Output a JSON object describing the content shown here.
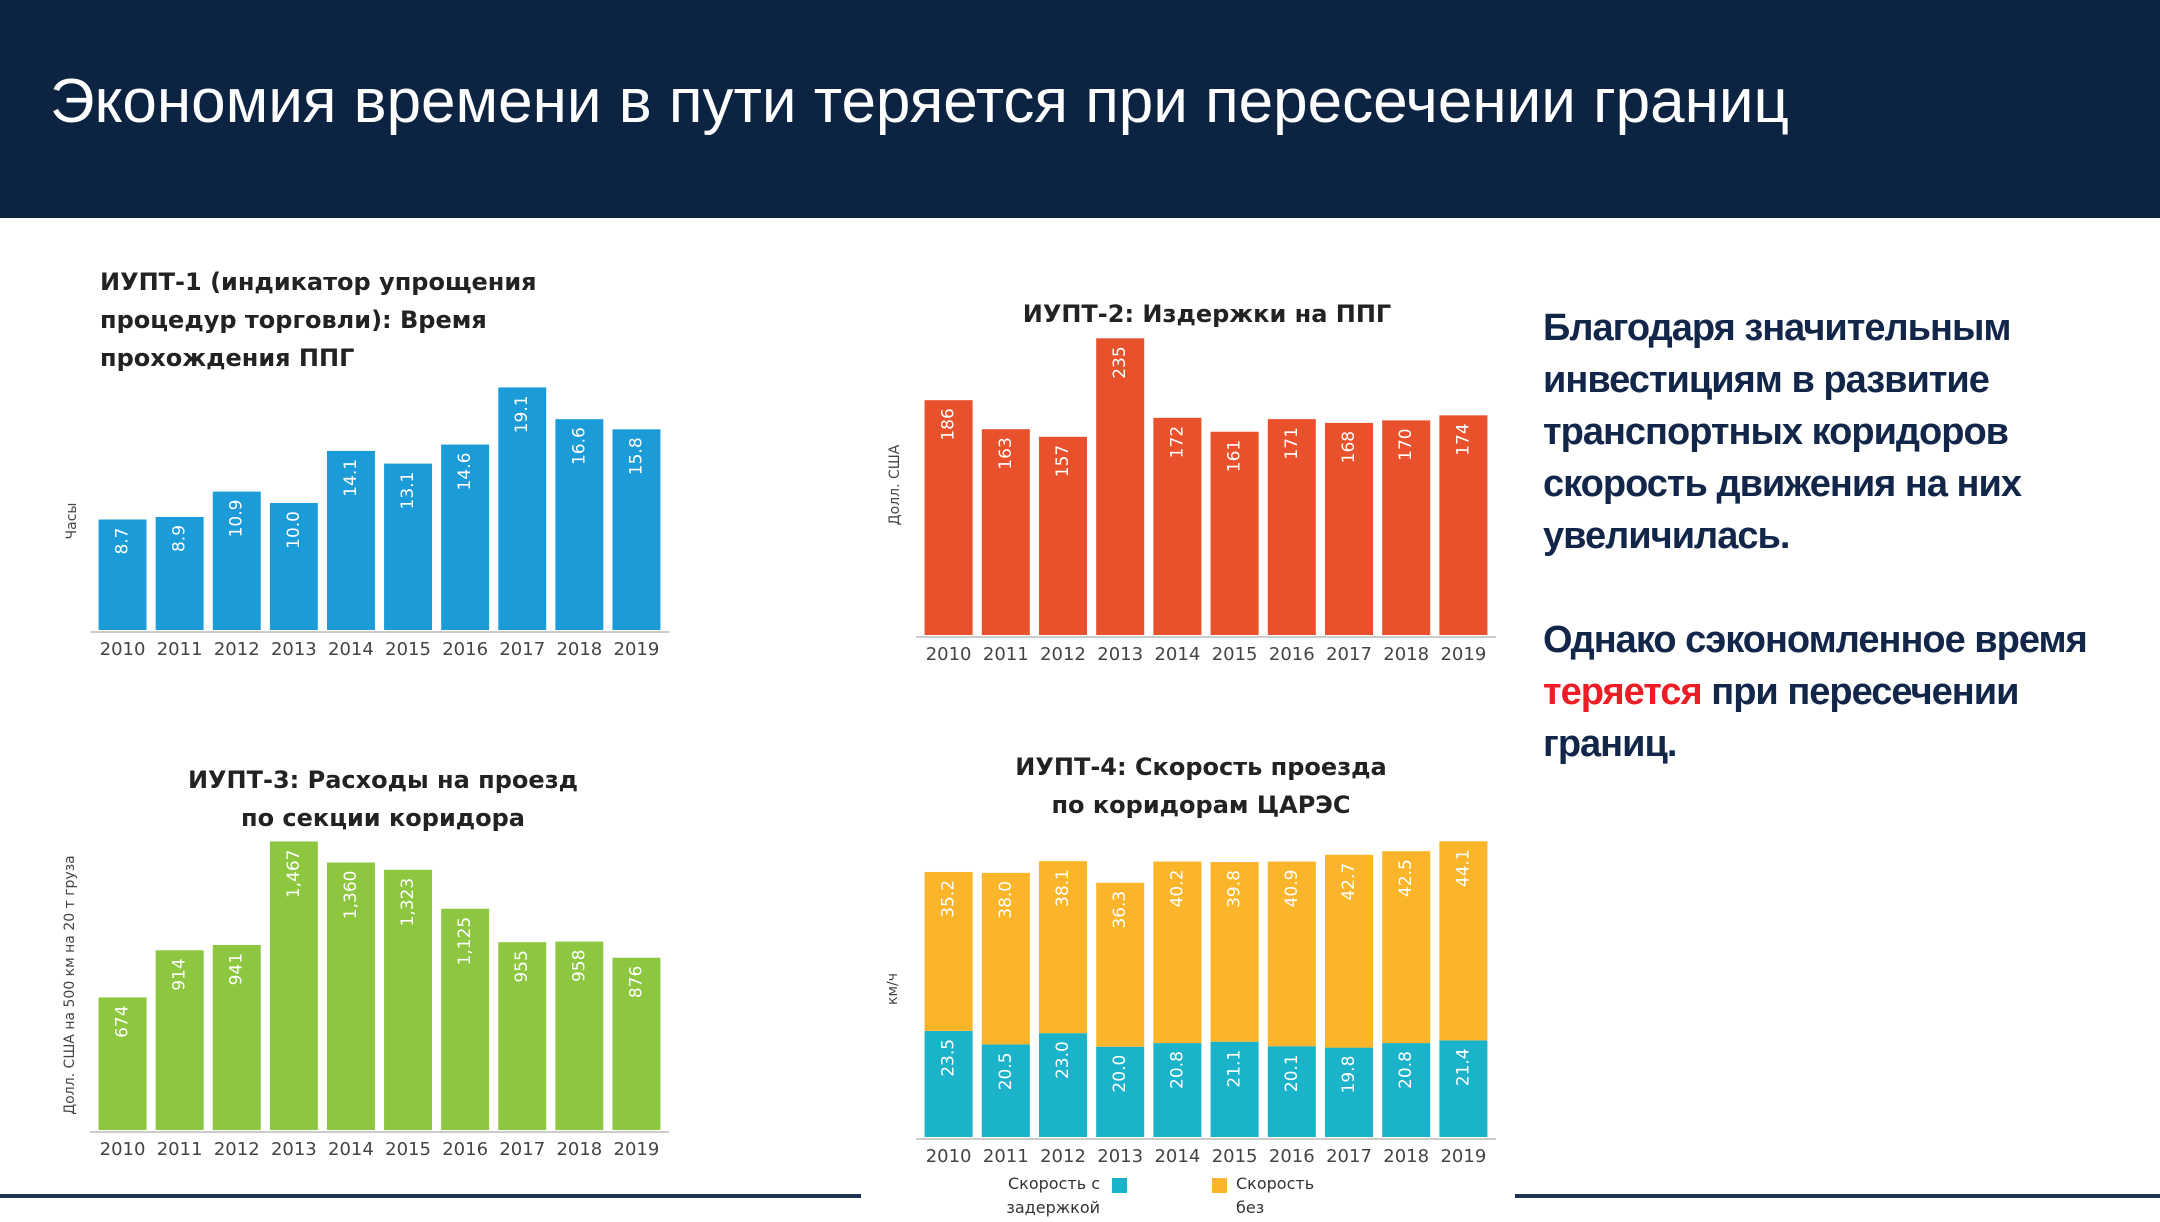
{
  "header": {
    "title": "Экономия времени в пути теряется при пересечении границ"
  },
  "text": {
    "paragraph_1": "Благодаря значительным инвестициям в развитие транспортных коридоров скорость движения на них увеличилась.",
    "paragraph_2": {
      "before": "Однако сэкономленное время",
      "highlight": "теряется",
      "after": "при пересечении границ."
    }
  },
  "chart_data": [
    {
      "type": "bar",
      "title": "ИУПТ-1 (индикатор упрощения процедур торговли): Время прохождения ППГ",
      "y_label": "Часы",
      "categories": [
        "2010",
        "2011",
        "2012",
        "2013",
        "2014",
        "2015",
        "2016",
        "2017",
        "2018",
        "2019"
      ],
      "values": [
        8.7,
        8.9,
        10.9,
        10.0,
        14.1,
        13.1,
        14.6,
        19.1,
        16.6,
        15.8
      ],
      "value_labels": [
        "8.7",
        "8.9",
        "10.9",
        "10.0",
        "14.1",
        "13.1",
        "14.6",
        "19.1",
        "16.6",
        "15.8"
      ],
      "color": "#1b9bd7",
      "ylim": [
        0,
        20
      ]
    },
    {
      "type": "bar",
      "title": "ИУПТ-2: Издержки на ППГ",
      "y_label": "Долл. США",
      "categories": [
        "2010",
        "2011",
        "2012",
        "2013",
        "2014",
        "2015",
        "2016",
        "2017",
        "2018",
        "2019"
      ],
      "values": [
        186,
        163,
        157,
        235,
        172,
        161,
        171,
        168,
        170,
        174
      ],
      "color": "#e8512b",
      "ylim": [
        0,
        240
      ]
    },
    {
      "type": "bar",
      "title": "ИУПТ-3: Расходы на проезд по секции коридора",
      "y_label": "Долл. США на 500 км на 20 т груза",
      "categories": [
        "2010",
        "2011",
        "2012",
        "2013",
        "2014",
        "2015",
        "2016",
        "2017",
        "2018",
        "2019"
      ],
      "values": [
        674,
        914,
        941,
        1467,
        1360,
        1323,
        1125,
        955,
        958,
        876
      ],
      "value_labels": [
        "674",
        "914",
        "941",
        "1,467",
        "1,360",
        "1,323",
        "1,125",
        "955",
        "958",
        "876"
      ],
      "color": "#8dc63f",
      "ylim": [
        0,
        1500
      ]
    },
    {
      "type": "stacked-bar",
      "title": "ИУПТ-4: Скорость проезда по коридорам ЦАРЭС",
      "y_label": "км/ч",
      "categories": [
        "2010",
        "2011",
        "2012",
        "2013",
        "2014",
        "2015",
        "2016",
        "2017",
        "2018",
        "2019"
      ],
      "series": [
        {
          "name": "Скорость с задержкой",
          "color": "#1bb3c9",
          "values": [
            23.5,
            20.5,
            23.0,
            20.0,
            20.8,
            21.1,
            20.1,
            19.8,
            20.8,
            21.4
          ],
          "value_labels": [
            "23.5",
            "20.5",
            "23.0",
            "20.0",
            "20.8",
            "21.1",
            "20.1",
            "19.8",
            "20.8",
            "21.4"
          ]
        },
        {
          "name": "Скорость без задержки",
          "color": "#fbb52b",
          "values": [
            35.2,
            38.0,
            38.1,
            36.3,
            40.2,
            39.8,
            40.9,
            42.7,
            42.5,
            44.1
          ],
          "value_labels": [
            "35.2",
            "38.0",
            "38.1",
            "36.3",
            "40.2",
            "39.8",
            "40.9",
            "42.7",
            "42.5",
            "44.1"
          ]
        }
      ],
      "ylim": [
        0,
        66
      ]
    }
  ]
}
